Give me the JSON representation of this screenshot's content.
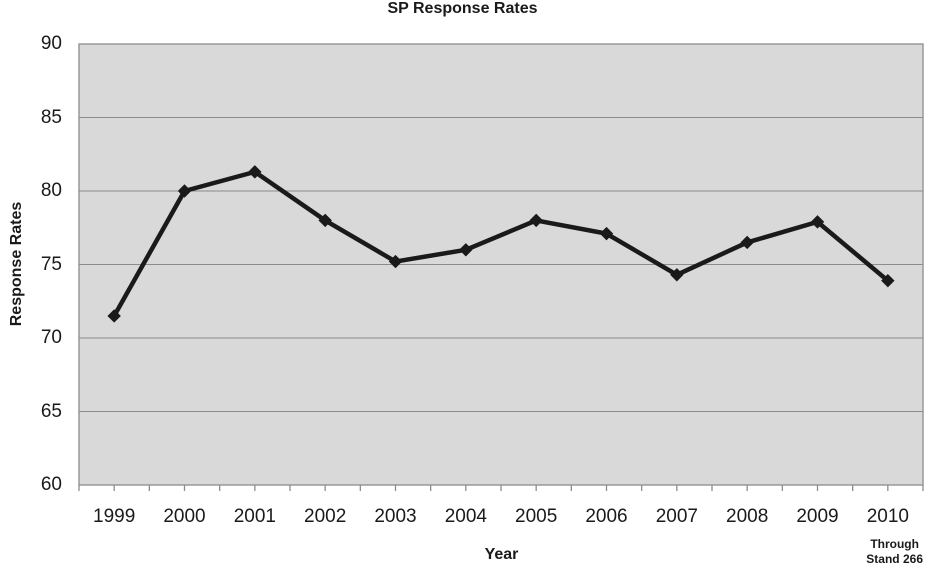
{
  "chart_data": {
    "type": "line",
    "title": "SP Response Rates",
    "xlabel": "Year",
    "ylabel": "Response Rates",
    "footnote_line1": "Through",
    "footnote_line2": "Stand 266",
    "categories": [
      "1999",
      "2000",
      "2001",
      "2002",
      "2003",
      "2004",
      "2005",
      "2006",
      "2007",
      "2008",
      "2009",
      "2010"
    ],
    "series": [
      {
        "name": "SP Response Rates",
        "values": [
          71.5,
          80.0,
          81.3,
          78.0,
          75.2,
          76.0,
          78.0,
          77.1,
          74.3,
          76.5,
          77.9,
          73.9
        ]
      }
    ],
    "ylim": [
      60,
      90
    ],
    "yticks": [
      60,
      65,
      70,
      75,
      80,
      85,
      90
    ],
    "grid": true,
    "legend": "none",
    "marker": "diamond",
    "colors": {
      "line": "#1a1a1a",
      "marker": "#1a1a1a",
      "plot_bg": "#d9d9d9",
      "gridline": "#8c8c8c",
      "border": "#8c8c8c",
      "text": "#000000",
      "background": "#ffffff"
    }
  }
}
